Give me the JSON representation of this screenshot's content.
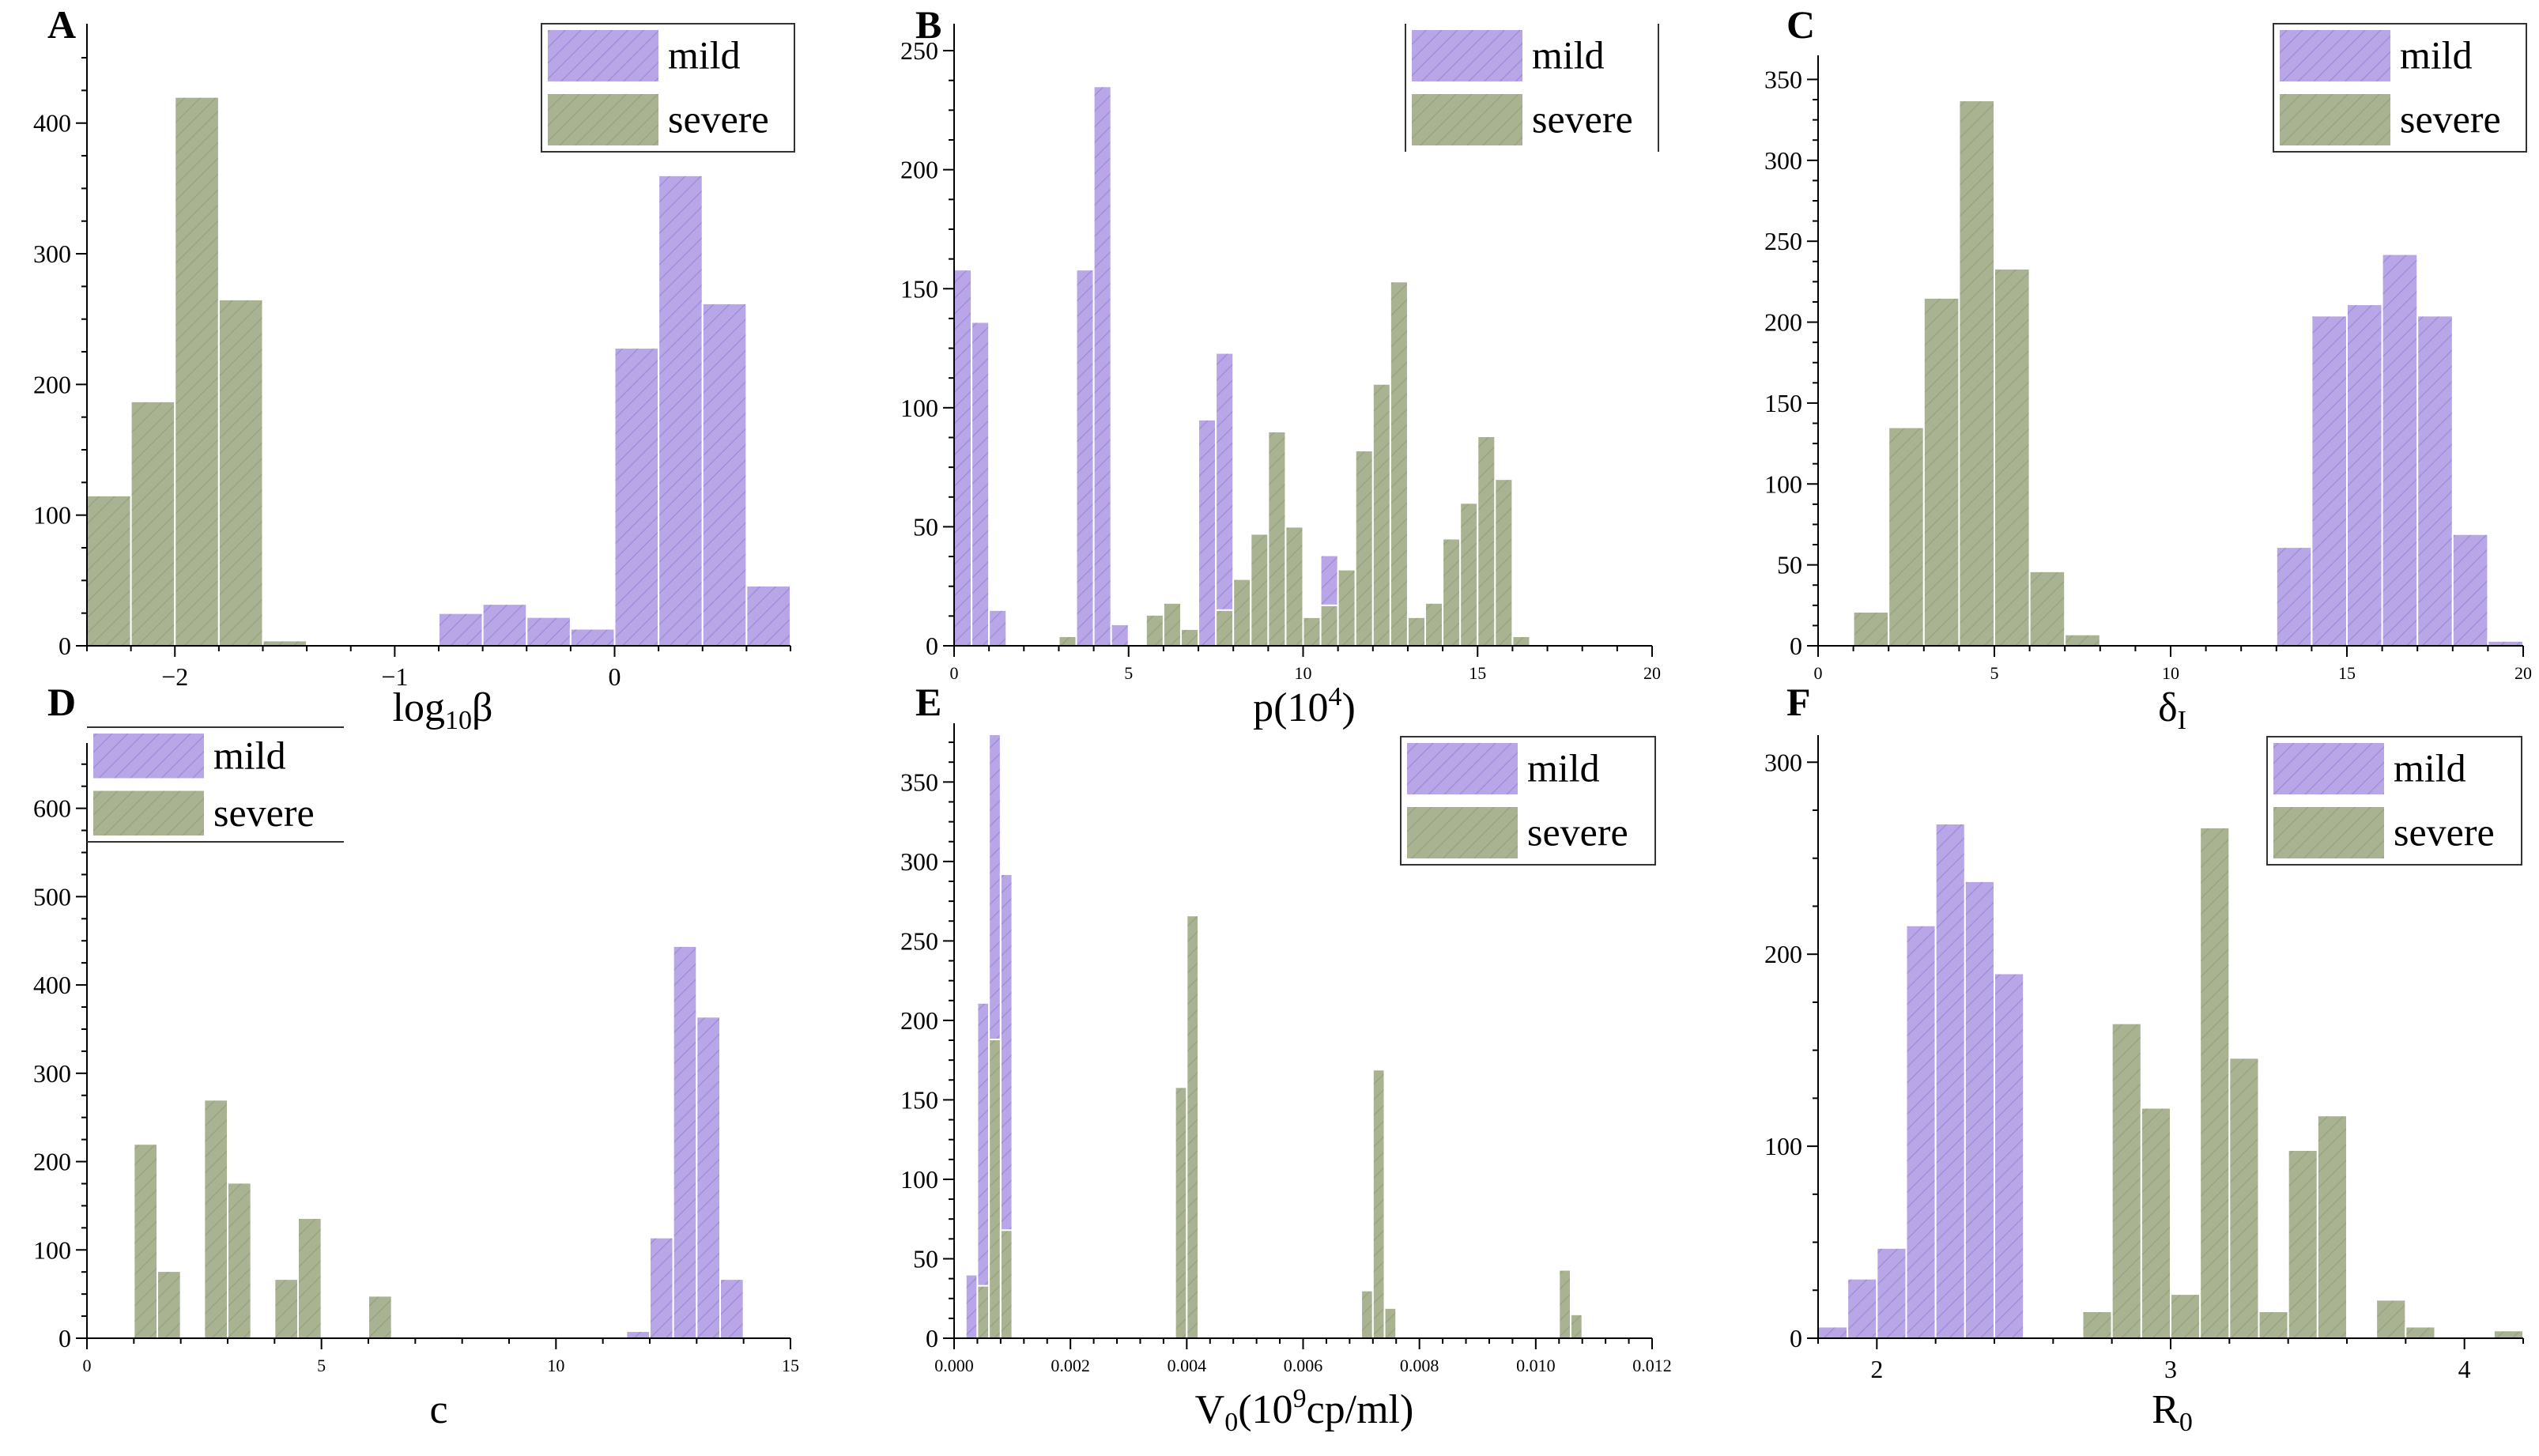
{
  "figure": {
    "colors": {
      "mild": "#b8a6e6",
      "mild_hatch": "#8f7fd6",
      "severe": "#a9b391",
      "severe_hatch": "#8a9a7a",
      "axis": "#000000",
      "legend_border": "#333333"
    },
    "legend": [
      "mild",
      "severe"
    ]
  },
  "chart_data": [
    {
      "panel": "A",
      "type": "bar",
      "xlabel_parts": [
        "log",
        "10",
        "β"
      ],
      "xlim": [
        -2.4,
        0.8
      ],
      "ylim": [
        0,
        470
      ],
      "xticks": [
        -2,
        -1,
        0
      ],
      "xtick_labels": [
        "−2",
        "−1",
        "0"
      ],
      "yticks": [
        0,
        100,
        200,
        300,
        400
      ],
      "ytick_labels": [
        "0",
        "100",
        "200",
        "300",
        "400"
      ],
      "legend_position": "top-right",
      "bin_width": 0.2,
      "series": [
        {
          "name": "severe",
          "bins": [
            {
              "x": -2.4,
              "w": 0.2,
              "v": 115
            },
            {
              "x": -2.2,
              "w": 0.2,
              "v": 187
            },
            {
              "x": -2.0,
              "w": 0.2,
              "v": 420
            },
            {
              "x": -1.8,
              "w": 0.2,
              "v": 265
            },
            {
              "x": -1.6,
              "w": 0.2,
              "v": 4
            },
            {
              "x": -1.4,
              "w": 0.2,
              "v": 1
            }
          ]
        },
        {
          "name": "mild",
          "bins": [
            {
              "x": -0.8,
              "w": 0.2,
              "v": 25
            },
            {
              "x": -0.6,
              "w": 0.2,
              "v": 32
            },
            {
              "x": -0.4,
              "w": 0.2,
              "v": 22
            },
            {
              "x": -0.2,
              "w": 0.2,
              "v": 13
            },
            {
              "x": 0.0,
              "w": 0.2,
              "v": 228
            },
            {
              "x": 0.2,
              "w": 0.2,
              "v": 360
            },
            {
              "x": 0.4,
              "w": 0.2,
              "v": 262
            },
            {
              "x": 0.6,
              "w": 0.2,
              "v": 46
            }
          ]
        }
      ]
    },
    {
      "panel": "B",
      "type": "bar",
      "xlabel_parts": [
        "p(10",
        "4",
        ")"
      ],
      "xlim": [
        0,
        20
      ],
      "ylim": [
        0,
        258
      ],
      "xticks": [
        0,
        5,
        10,
        15,
        20
      ],
      "xtick_labels": [
        "0",
        "5",
        "10",
        "15",
        "20"
      ],
      "yticks": [
        0,
        50,
        100,
        150,
        200,
        250
      ],
      "ytick_labels": [
        "0",
        "50",
        "100",
        "150",
        "200",
        "250"
      ],
      "legend_position": "top-right",
      "series": [
        {
          "name": "mild",
          "bins": [
            {
              "x": 0.0,
              "w": 0.5,
              "v": 158
            },
            {
              "x": 0.5,
              "w": 0.5,
              "v": 136
            },
            {
              "x": 1.0,
              "w": 0.5,
              "v": 15
            },
            {
              "x": 3.5,
              "w": 0.5,
              "v": 158
            },
            {
              "x": 4.0,
              "w": 0.5,
              "v": 235
            },
            {
              "x": 4.5,
              "w": 0.5,
              "v": 9
            },
            {
              "x": 7.0,
              "w": 0.5,
              "v": 95
            },
            {
              "x": 7.5,
              "w": 0.5,
              "v": 123
            },
            {
              "x": 10.5,
              "w": 0.5,
              "v": 38
            }
          ]
        },
        {
          "name": "severe",
          "bins": [
            {
              "x": 3.0,
              "w": 0.5,
              "v": 4
            },
            {
              "x": 5.5,
              "w": 0.5,
              "v": 13
            },
            {
              "x": 6.0,
              "w": 0.5,
              "v": 18
            },
            {
              "x": 6.5,
              "w": 0.5,
              "v": 7
            },
            {
              "x": 7.5,
              "w": 0.5,
              "v": 15
            },
            {
              "x": 8.0,
              "w": 0.5,
              "v": 28
            },
            {
              "x": 8.5,
              "w": 0.5,
              "v": 47
            },
            {
              "x": 9.0,
              "w": 0.5,
              "v": 90
            },
            {
              "x": 9.5,
              "w": 0.5,
              "v": 50
            },
            {
              "x": 10.0,
              "w": 0.5,
              "v": 12
            },
            {
              "x": 10.5,
              "w": 0.5,
              "v": 17
            },
            {
              "x": 11.0,
              "w": 0.5,
              "v": 32
            },
            {
              "x": 11.5,
              "w": 0.5,
              "v": 82
            },
            {
              "x": 12.0,
              "w": 0.5,
              "v": 110
            },
            {
              "x": 12.5,
              "w": 0.5,
              "v": 153
            },
            {
              "x": 13.0,
              "w": 0.5,
              "v": 12
            },
            {
              "x": 13.5,
              "w": 0.5,
              "v": 18
            },
            {
              "x": 14.0,
              "w": 0.5,
              "v": 45
            },
            {
              "x": 14.5,
              "w": 0.5,
              "v": 60
            },
            {
              "x": 15.0,
              "w": 0.5,
              "v": 88
            },
            {
              "x": 15.5,
              "w": 0.5,
              "v": 70
            },
            {
              "x": 16.0,
              "w": 0.5,
              "v": 4
            }
          ]
        }
      ]
    },
    {
      "panel": "C",
      "type": "bar",
      "xlabel_parts": [
        "δ",
        "I",
        ""
      ],
      "xlim": [
        0,
        20
      ],
      "ylim": [
        0,
        360
      ],
      "xticks": [
        0,
        5,
        10,
        15,
        20
      ],
      "xtick_labels": [
        "0",
        "5",
        "10",
        "15",
        "20"
      ],
      "yticks": [
        0,
        50,
        100,
        150,
        200,
        250,
        300,
        350
      ],
      "ytick_labels": [
        "0",
        "50",
        "100",
        "150",
        "200",
        "250",
        "300",
        "350"
      ],
      "legend_position": "top-right",
      "series": [
        {
          "name": "severe",
          "bins": [
            {
              "x": 1.0,
              "w": 1,
              "v": 21
            },
            {
              "x": 2.0,
              "w": 1,
              "v": 135
            },
            {
              "x": 3.0,
              "w": 1,
              "v": 215
            },
            {
              "x": 4.0,
              "w": 1,
              "v": 337
            },
            {
              "x": 5.0,
              "w": 1,
              "v": 233
            },
            {
              "x": 6.0,
              "w": 1,
              "v": 46
            },
            {
              "x": 7.0,
              "w": 1,
              "v": 7
            }
          ]
        },
        {
          "name": "mild",
          "bins": [
            {
              "x": 13.0,
              "w": 1,
              "v": 61
            },
            {
              "x": 14.0,
              "w": 1,
              "v": 204
            },
            {
              "x": 15.0,
              "w": 1,
              "v": 211
            },
            {
              "x": 16.0,
              "w": 1,
              "v": 242
            },
            {
              "x": 17.0,
              "w": 1,
              "v": 204
            },
            {
              "x": 18.0,
              "w": 1,
              "v": 69
            },
            {
              "x": 19.0,
              "w": 1,
              "v": 3
            }
          ]
        }
      ]
    },
    {
      "panel": "D",
      "type": "bar",
      "xlabel_parts": [
        "c",
        "",
        ""
      ],
      "xlim": [
        0,
        15
      ],
      "ylim": [
        0,
        665
      ],
      "xticks": [
        0,
        5,
        10,
        15
      ],
      "xtick_labels": [
        "0",
        "5",
        "10",
        "15"
      ],
      "yticks": [
        0,
        100,
        200,
        300,
        400,
        500,
        600
      ],
      "ytick_labels": [
        "0",
        "100",
        "200",
        "300",
        "400",
        "500",
        "600"
      ],
      "legend_position": "top-left",
      "series": [
        {
          "name": "severe",
          "bins": [
            {
              "x": 1.0,
              "w": 0.5,
              "v": 220
            },
            {
              "x": 1.5,
              "w": 0.5,
              "v": 76
            },
            {
              "x": 2.5,
              "w": 0.5,
              "v": 270
            },
            {
              "x": 3.0,
              "w": 0.5,
              "v": 176
            },
            {
              "x": 4.0,
              "w": 0.5,
              "v": 67
            },
            {
              "x": 4.5,
              "w": 0.5,
              "v": 136
            },
            {
              "x": 6.0,
              "w": 0.5,
              "v": 48
            },
            {
              "x": 7.5,
              "w": 0.5,
              "v": 2
            }
          ]
        },
        {
          "name": "mild",
          "bins": [
            {
              "x": 11.5,
              "w": 0.5,
              "v": 8
            },
            {
              "x": 12.0,
              "w": 0.5,
              "v": 114
            },
            {
              "x": 12.5,
              "w": 0.5,
              "v": 444
            },
            {
              "x": 13.0,
              "w": 0.5,
              "v": 364
            },
            {
              "x": 13.5,
              "w": 0.5,
              "v": 67
            }
          ]
        }
      ]
    },
    {
      "panel": "E",
      "type": "bar",
      "xlabel_parts": [
        "V",
        "0",
        "(10",
        "9",
        "cp/ml)"
      ],
      "xlim": [
        0,
        0.012
      ],
      "ylim": [
        0,
        382
      ],
      "xticks": [
        0,
        0.002,
        0.004,
        0.006,
        0.008,
        0.01,
        0.012
      ],
      "xtick_labels": [
        "0.000",
        "0.002",
        "0.004",
        "0.006",
        "0.008",
        "0.010",
        "0.012"
      ],
      "yticks": [
        0,
        50,
        100,
        150,
        200,
        250,
        300,
        350
      ],
      "ytick_labels": [
        "0",
        "50",
        "100",
        "150",
        "200",
        "250",
        "300",
        "350"
      ],
      "legend_position": "top-right",
      "series": [
        {
          "name": "mild",
          "bins": [
            {
              "x": 0.0002,
              "w": 0.0002,
              "v": 40
            },
            {
              "x": 0.0004,
              "w": 0.0002,
              "v": 211
            },
            {
              "x": 0.0006,
              "w": 0.0002,
              "v": 380
            },
            {
              "x": 0.0008,
              "w": 0.0002,
              "v": 292
            }
          ]
        },
        {
          "name": "severe",
          "bins": [
            {
              "x": 0.0004,
              "w": 0.0002,
              "v": 33
            },
            {
              "x": 0.0006,
              "w": 0.0002,
              "v": 188
            },
            {
              "x": 0.0008,
              "w": 0.0002,
              "v": 68
            },
            {
              "x": 0.0038,
              "w": 0.0002,
              "v": 158
            },
            {
              "x": 0.004,
              "w": 0.0002,
              "v": 266
            },
            {
              "x": 0.007,
              "w": 0.0002,
              "v": 30
            },
            {
              "x": 0.0072,
              "w": 0.0002,
              "v": 169
            },
            {
              "x": 0.0074,
              "w": 0.0002,
              "v": 19
            },
            {
              "x": 0.0104,
              "w": 0.0002,
              "v": 43
            },
            {
              "x": 0.0106,
              "w": 0.0002,
              "v": 15
            }
          ]
        }
      ]
    },
    {
      "panel": "F",
      "type": "bar",
      "xlabel_parts": [
        "R",
        "0",
        ""
      ],
      "xlim": [
        1.8,
        4.2
      ],
      "ylim": [
        0,
        310
      ],
      "xticks": [
        2,
        3,
        4
      ],
      "xtick_labels": [
        "2",
        "3",
        "4"
      ],
      "yticks": [
        0,
        100,
        200,
        300
      ],
      "ytick_labels": [
        "0",
        "100",
        "200",
        "300"
      ],
      "legend_position": "top-right",
      "series": [
        {
          "name": "mild",
          "bins": [
            {
              "x": 1.8,
              "w": 0.1,
              "v": 6
            },
            {
              "x": 1.9,
              "w": 0.1,
              "v": 31
            },
            {
              "x": 2.0,
              "w": 0.1,
              "v": 47
            },
            {
              "x": 2.1,
              "w": 0.1,
              "v": 215
            },
            {
              "x": 2.2,
              "w": 0.1,
              "v": 268
            },
            {
              "x": 2.3,
              "w": 0.1,
              "v": 238
            },
            {
              "x": 2.4,
              "w": 0.1,
              "v": 190
            }
          ]
        },
        {
          "name": "severe",
          "bins": [
            {
              "x": 2.7,
              "w": 0.1,
              "v": 14
            },
            {
              "x": 2.8,
              "w": 0.1,
              "v": 164
            },
            {
              "x": 2.9,
              "w": 0.1,
              "v": 120
            },
            {
              "x": 3.0,
              "w": 0.1,
              "v": 23
            },
            {
              "x": 3.1,
              "w": 0.1,
              "v": 266
            },
            {
              "x": 3.2,
              "w": 0.1,
              "v": 146
            },
            {
              "x": 3.3,
              "w": 0.1,
              "v": 14
            },
            {
              "x": 3.4,
              "w": 0.1,
              "v": 98
            },
            {
              "x": 3.5,
              "w": 0.1,
              "v": 116
            },
            {
              "x": 3.7,
              "w": 0.1,
              "v": 20
            },
            {
              "x": 3.8,
              "w": 0.1,
              "v": 6
            },
            {
              "x": 4.1,
              "w": 0.1,
              "v": 4
            }
          ]
        }
      ]
    }
  ]
}
